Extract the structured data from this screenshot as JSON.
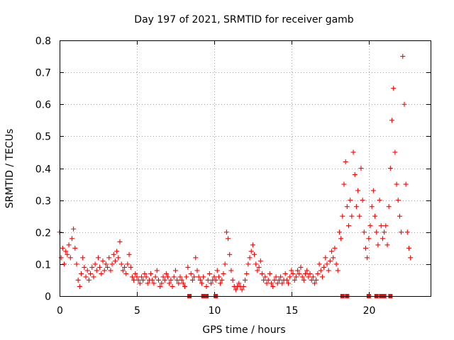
{
  "chart_data": {
    "type": "scatter",
    "title": "Day 197 of 2021, SRMTID for receiver gamb",
    "xlabel": "GPS time / hours",
    "ylabel": "SRMTID / TECUs",
    "xlim": [
      0,
      24
    ],
    "ylim": [
      0,
      0.8
    ],
    "xticks": [
      0,
      5,
      10,
      15,
      20
    ],
    "yticks": [
      0,
      0.1,
      0.2,
      0.3,
      0.4,
      0.5,
      0.6,
      0.7,
      0.8
    ],
    "xtick_labels": [
      "0",
      "5",
      "10",
      "15",
      "20"
    ],
    "ytick_labels": [
      "0",
      "0.1",
      "0.2",
      "0.3",
      "0.4",
      "0.5",
      "0.6",
      "0.7",
      "0.8"
    ],
    "grid": true,
    "marker": "+",
    "color": "#ff0000",
    "series": [
      {
        "name": "SRMTID",
        "x": [
          0.0,
          0.1,
          0.2,
          0.3,
          0.4,
          0.5,
          0.6,
          0.7,
          0.8,
          0.9,
          1.0,
          1.1,
          1.2,
          1.3,
          1.4,
          1.5,
          1.6,
          1.7,
          1.8,
          1.9,
          2.0,
          2.1,
          2.2,
          2.3,
          2.4,
          2.5,
          2.6,
          2.7,
          2.8,
          2.9,
          3.0,
          3.1,
          3.2,
          3.3,
          3.4,
          3.5,
          3.6,
          3.7,
          3.8,
          3.9,
          4.0,
          4.1,
          4.2,
          4.3,
          4.4,
          4.5,
          4.6,
          4.7,
          4.8,
          4.9,
          5.0,
          5.1,
          5.2,
          5.3,
          5.4,
          5.5,
          5.6,
          5.7,
          5.8,
          5.9,
          6.0,
          6.1,
          6.2,
          6.3,
          6.4,
          6.5,
          6.6,
          6.7,
          6.8,
          6.9,
          7.0,
          7.1,
          7.2,
          7.3,
          7.4,
          7.5,
          7.6,
          7.7,
          7.8,
          7.9,
          8.0,
          8.1,
          8.2,
          8.3,
          8.5,
          8.6,
          8.7,
          8.8,
          8.9,
          9.0,
          9.1,
          9.2,
          9.3,
          9.5,
          9.6,
          9.7,
          9.8,
          9.9,
          10.0,
          10.1,
          10.2,
          10.3,
          10.4,
          10.5,
          10.6,
          10.7,
          10.8,
          10.9,
          11.0,
          11.1,
          11.2,
          11.3,
          11.4,
          11.5,
          11.6,
          11.7,
          11.8,
          11.9,
          12.0,
          12.1,
          12.2,
          12.3,
          12.4,
          12.5,
          12.6,
          12.7,
          12.8,
          12.9,
          13.0,
          13.1,
          13.2,
          13.3,
          13.4,
          13.5,
          13.6,
          13.7,
          13.8,
          13.9,
          14.0,
          14.1,
          14.2,
          14.3,
          14.4,
          14.5,
          14.6,
          14.7,
          14.8,
          14.9,
          15.0,
          15.1,
          15.2,
          15.3,
          15.4,
          15.5,
          15.6,
          15.7,
          15.8,
          15.9,
          16.0,
          16.1,
          16.2,
          16.3,
          16.4,
          16.5,
          16.6,
          16.7,
          16.8,
          16.9,
          17.0,
          17.1,
          17.2,
          17.3,
          17.4,
          17.5,
          17.6,
          17.7,
          17.8,
          17.9,
          18.0,
          18.1,
          18.2,
          18.3,
          18.4,
          18.5,
          18.6,
          18.7,
          18.8,
          18.9,
          19.0,
          19.1,
          19.2,
          19.3,
          19.4,
          19.5,
          19.6,
          19.7,
          19.8,
          19.9,
          20.0,
          20.1,
          20.2,
          20.3,
          20.4,
          20.5,
          20.6,
          20.7,
          20.8,
          20.9,
          21.0,
          21.1,
          21.2,
          21.3,
          21.4,
          21.5,
          21.6,
          21.7,
          21.8,
          21.9,
          22.0,
          22.1,
          22.2,
          22.3,
          22.4,
          22.5,
          22.6,
          22.7
        ],
        "y": [
          0.2,
          0.12,
          0.15,
          0.1,
          0.14,
          0.13,
          0.16,
          0.12,
          0.18,
          0.21,
          0.15,
          0.1,
          0.05,
          0.03,
          0.07,
          0.12,
          0.09,
          0.06,
          0.08,
          0.05,
          0.07,
          0.09,
          0.06,
          0.1,
          0.08,
          0.12,
          0.09,
          0.07,
          0.11,
          0.08,
          0.1,
          0.09,
          0.12,
          0.08,
          0.1,
          0.13,
          0.11,
          0.14,
          0.12,
          0.17,
          0.1,
          0.08,
          0.09,
          0.07,
          0.1,
          0.13,
          0.09,
          0.06,
          0.05,
          0.07,
          0.06,
          0.05,
          0.04,
          0.06,
          0.05,
          0.07,
          0.06,
          0.04,
          0.05,
          0.07,
          0.05,
          0.04,
          0.06,
          0.08,
          0.05,
          0.03,
          0.04,
          0.06,
          0.05,
          0.07,
          0.06,
          0.04,
          0.05,
          0.03,
          0.06,
          0.08,
          0.05,
          0.04,
          0.06,
          0.05,
          0.04,
          0.03,
          0.06,
          0.09,
          0.07,
          0.05,
          0.06,
          0.12,
          0.08,
          0.06,
          0.05,
          0.04,
          0.06,
          0.03,
          0.05,
          0.07,
          0.04,
          0.05,
          0.06,
          0.05,
          0.08,
          0.06,
          0.04,
          0.05,
          0.07,
          0.1,
          0.2,
          0.18,
          0.13,
          0.08,
          0.05,
          0.03,
          0.02,
          0.03,
          0.04,
          0.03,
          0.02,
          0.03,
          0.05,
          0.07,
          0.1,
          0.12,
          0.14,
          0.16,
          0.13,
          0.1,
          0.08,
          0.09,
          0.11,
          0.07,
          0.05,
          0.06,
          0.04,
          0.05,
          0.07,
          0.04,
          0.03,
          0.05,
          0.06,
          0.04,
          0.05,
          0.06,
          0.04,
          0.05,
          0.07,
          0.05,
          0.04,
          0.06,
          0.08,
          0.07,
          0.05,
          0.06,
          0.08,
          0.07,
          0.09,
          0.06,
          0.05,
          0.07,
          0.08,
          0.06,
          0.07,
          0.05,
          0.06,
          0.04,
          0.05,
          0.07,
          0.1,
          0.08,
          0.06,
          0.09,
          0.12,
          0.1,
          0.08,
          0.11,
          0.14,
          0.12,
          0.15,
          0.1,
          0.08,
          0.2,
          0.18,
          0.25,
          0.35,
          0.42,
          0.28,
          0.22,
          0.3,
          0.25,
          0.45,
          0.38,
          0.28,
          0.33,
          0.25,
          0.4,
          0.3,
          0.2,
          0.15,
          0.12,
          0.18,
          0.22,
          0.28,
          0.33,
          0.25,
          0.2,
          0.16,
          0.3,
          0.22,
          0.18,
          0.2,
          0.22,
          0.16,
          0.28,
          0.4,
          0.55,
          0.65,
          0.45,
          0.35,
          0.3,
          0.25,
          0.2,
          0.75,
          0.6,
          0.35,
          0.2,
          0.15,
          0.12
        ],
        "zero_x": [
          8.4,
          9.3,
          9.5,
          10.1,
          18.3,
          18.6,
          20.0,
          20.5,
          20.8,
          21.0,
          21.4
        ]
      }
    ]
  }
}
